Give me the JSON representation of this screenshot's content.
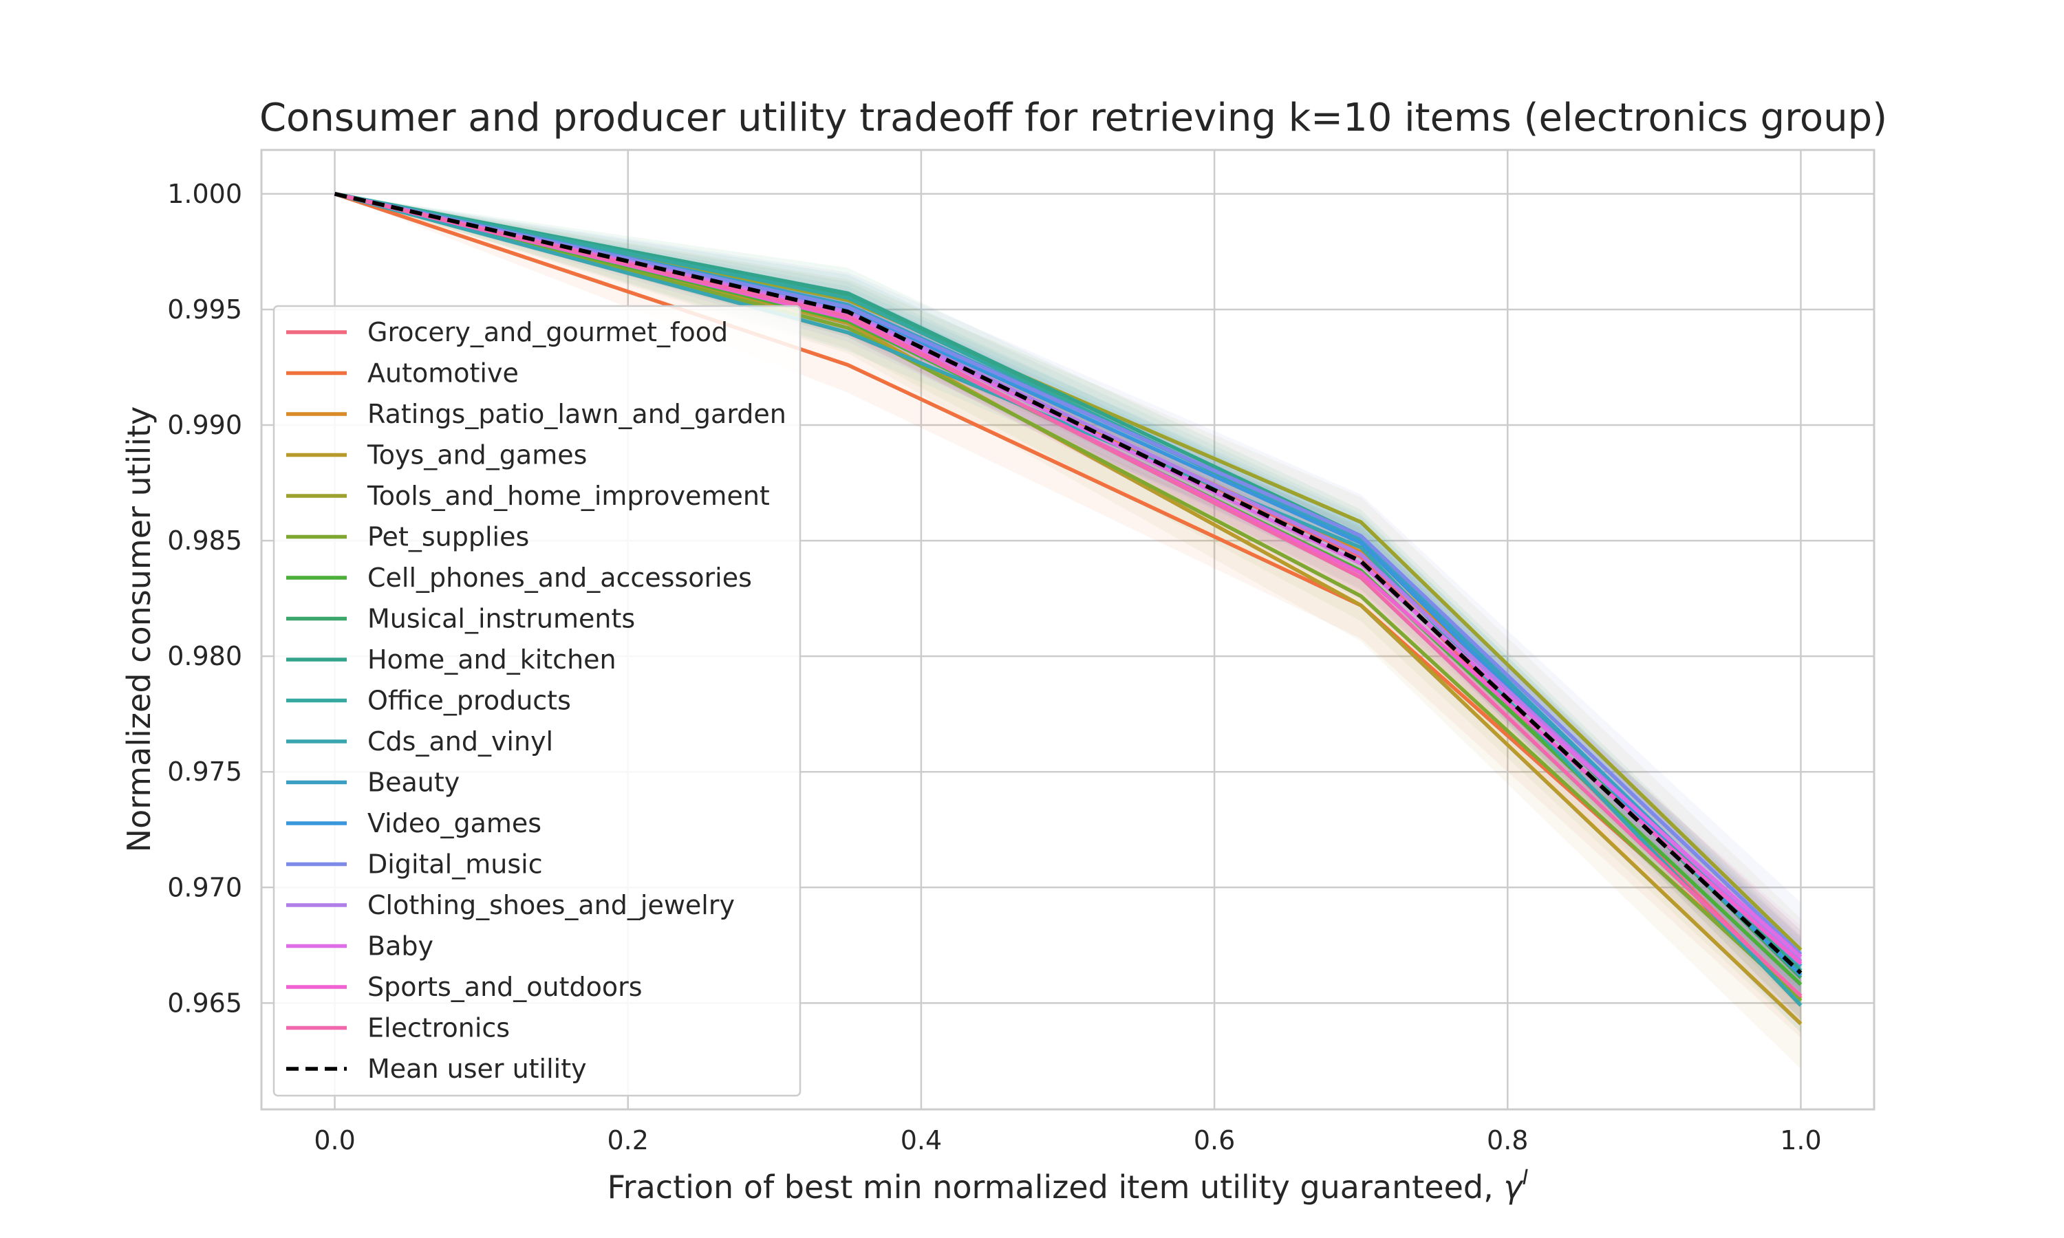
{
  "chart_data": {
    "type": "line",
    "title": "Consumer and producer utility tradeoff for retrieving k=10 items (electronics group)",
    "xlabel": "Fraction of best min normalized item utility guaranteed, ",
    "xlabel_symbol": "γ",
    "xlabel_sup": "I",
    "ylabel": "Normalized consumer utility",
    "xlim": [
      -0.05,
      1.05
    ],
    "ylim": [
      0.9604,
      1.0019
    ],
    "x_ticks": [
      "0.0",
      "0.2",
      "0.4",
      "0.6",
      "0.8",
      "1.0"
    ],
    "y_ticks": [
      "1.000",
      "0.995",
      "0.990",
      "0.985",
      "0.980",
      "0.975",
      "0.970",
      "0.965"
    ],
    "grid": true,
    "legend_position": "left",
    "x": [
      0.0,
      0.35,
      0.7,
      1.0
    ],
    "series": [
      {
        "name": "Grocery_and_gourmet_food",
        "color": "#f0697f",
        "values": [
          1.0,
          0.9948,
          0.9843,
          0.9652
        ],
        "band": 0.0006
      },
      {
        "name": "Automotive",
        "color": "#f0703e",
        "values": [
          1.0,
          0.9926,
          0.9822,
          0.9653
        ],
        "band": 0.0012
      },
      {
        "name": "Ratings_patio_lawn_and_garden",
        "color": "#d98a29",
        "values": [
          1.0,
          0.9947,
          0.9845,
          0.9668
        ],
        "band": 0.0009
      },
      {
        "name": "Toys_and_games",
        "color": "#b99a2c",
        "values": [
          1.0,
          0.9944,
          0.9822,
          0.9641
        ],
        "band": 0.0013
      },
      {
        "name": "Tools_and_home_improvement",
        "color": "#9da12d",
        "values": [
          1.0,
          0.9954,
          0.9858,
          0.9673
        ],
        "band": 0.0009
      },
      {
        "name": "Pet_supplies",
        "color": "#7fa832",
        "values": [
          1.0,
          0.9942,
          0.9826,
          0.9651
        ],
        "band": 0.0009
      },
      {
        "name": "Cell_phones_and_accessories",
        "color": "#4caf3a",
        "values": [
          1.0,
          0.9945,
          0.9837,
          0.9658
        ],
        "band": 0.0007
      },
      {
        "name": "Musical_instruments",
        "color": "#3aa66a",
        "values": [
          1.0,
          0.9956,
          0.9849,
          0.9661
        ],
        "band": 0.0012
      },
      {
        "name": "Home_and_kitchen",
        "color": "#33a48c",
        "values": [
          1.0,
          0.9957,
          0.9852,
          0.9664
        ],
        "band": 0.0008
      },
      {
        "name": "Office_products",
        "color": "#35a9a0",
        "values": [
          1.0,
          0.9955,
          0.985,
          0.9662
        ],
        "band": 0.0007
      },
      {
        "name": "Cds_and_vinyl",
        "color": "#39a5b0",
        "values": [
          1.0,
          0.994,
          0.9847,
          0.9649
        ],
        "band": 0.0008
      },
      {
        "name": "Beauty",
        "color": "#3b9fc4",
        "values": [
          1.0,
          0.9952,
          0.9851,
          0.9666
        ],
        "band": 0.0008
      },
      {
        "name": "Video_games",
        "color": "#3a96dc",
        "values": [
          1.0,
          0.995,
          0.9849,
          0.9662
        ],
        "band": 0.0008
      },
      {
        "name": "Digital_music",
        "color": "#7d8ae8",
        "values": [
          1.0,
          0.9951,
          0.9852,
          0.9671
        ],
        "band": 0.0015
      },
      {
        "name": "Clothing_shoes_and_jewelry",
        "color": "#b07ee8",
        "values": [
          1.0,
          0.9949,
          0.9844,
          0.9668
        ],
        "band": 0.0009
      },
      {
        "name": "Baby",
        "color": "#de6ee6",
        "values": [
          1.0,
          0.9948,
          0.984,
          0.967
        ],
        "band": 0.0009
      },
      {
        "name": "Sports_and_outdoors",
        "color": "#f061d2",
        "values": [
          1.0,
          0.9946,
          0.9836,
          0.9667
        ],
        "band": 0.0008
      },
      {
        "name": "Electronics",
        "color": "#f268ad",
        "values": [
          1.0,
          0.9947,
          0.9834,
          0.9653
        ],
        "band": 0.0008
      },
      {
        "name": "Mean user utility",
        "color": "#000000",
        "dashed": true,
        "values": [
          1.0,
          0.9949,
          0.9841,
          0.9663
        ]
      }
    ]
  }
}
